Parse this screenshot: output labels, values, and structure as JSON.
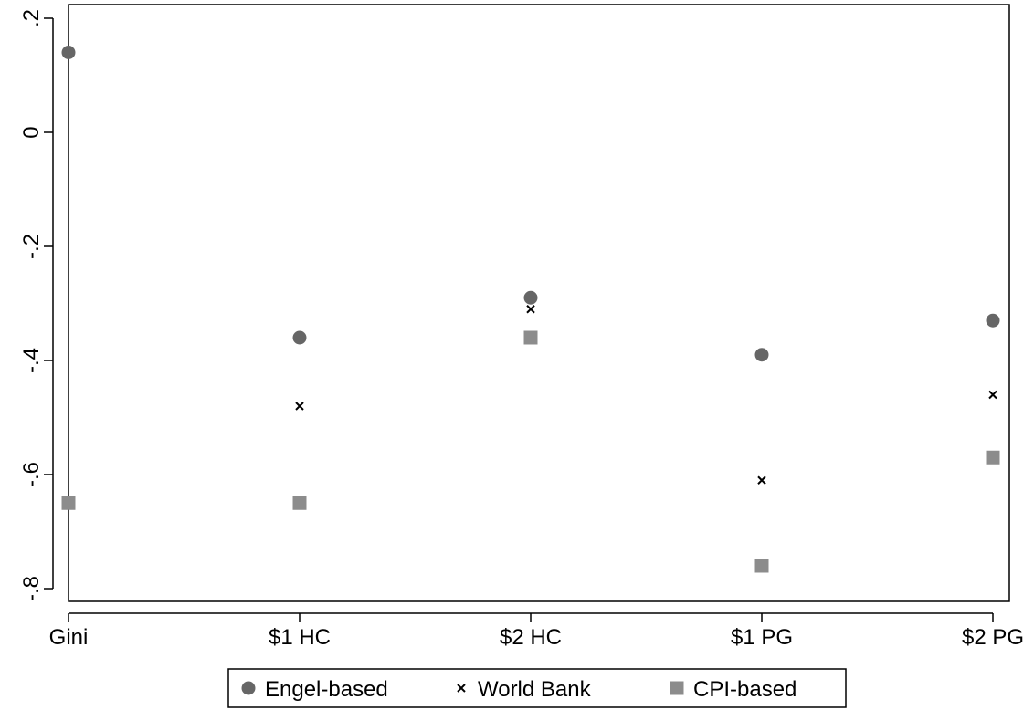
{
  "chart_data": {
    "type": "scatter",
    "categories": [
      "Gini",
      "$1 HC",
      "$2 HC",
      "$1 PG",
      "$2 PG"
    ],
    "series": [
      {
        "name": "Engel-based",
        "marker": "circle",
        "color": "#666666",
        "values": [
          0.14,
          -0.36,
          -0.29,
          -0.39,
          -0.33
        ]
      },
      {
        "name": "World Bank",
        "marker": "x",
        "color": "#000000",
        "values": [
          null,
          -0.48,
          -0.31,
          -0.61,
          -0.46
        ]
      },
      {
        "name": "CPI-based",
        "marker": "square",
        "color": "#8c8c8c",
        "values": [
          -0.65,
          -0.65,
          -0.36,
          -0.76,
          -0.57
        ]
      }
    ],
    "yticks": [
      -0.8,
      -0.6,
      -0.4,
      -0.2,
      0,
      0.2
    ],
    "ytick_labels": [
      "-.8",
      "-.6",
      "-.4",
      "-.2",
      "0",
      ".2"
    ],
    "ylim": [
      -0.82,
      0.22
    ],
    "title": "",
    "xlabel": "",
    "ylabel": "",
    "grid": false,
    "legend_position": "bottom"
  }
}
